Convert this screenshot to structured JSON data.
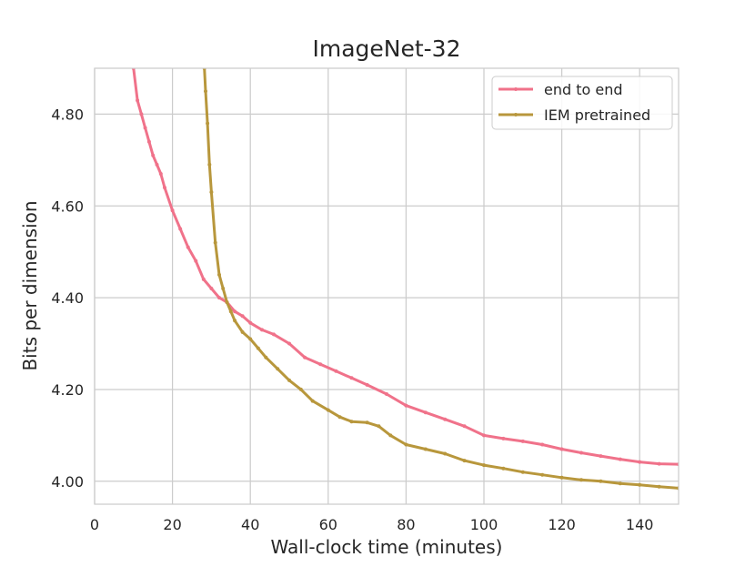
{
  "chart_data": {
    "type": "line",
    "title": "ImageNet-32",
    "xlabel": "Wall-clock time (minutes)",
    "ylabel": "Bits per dimension",
    "xlim": [
      0,
      150
    ],
    "ylim": [
      3.95,
      4.9
    ],
    "xticks": [
      0,
      20,
      40,
      60,
      80,
      100,
      120,
      140
    ],
    "xtick_labels": [
      "0",
      "20",
      "40",
      "60",
      "80",
      "100",
      "120",
      "140"
    ],
    "yticks": [
      4.0,
      4.2,
      4.4,
      4.6,
      4.8
    ],
    "ytick_labels": [
      "4.00",
      "4.20",
      "4.40",
      "4.60",
      "4.80"
    ],
    "grid": true,
    "legend_position": "top-right",
    "series": [
      {
        "name": "end to end",
        "color": "#f0728a",
        "x": [
          10,
          11,
          12,
          13,
          14,
          15,
          16,
          17,
          18,
          20,
          22,
          24,
          26,
          28,
          30,
          32,
          34,
          36,
          38,
          40,
          43,
          46,
          50,
          54,
          58,
          62,
          66,
          70,
          75,
          80,
          85,
          90,
          95,
          100,
          105,
          110,
          115,
          120,
          125,
          130,
          135,
          140,
          145,
          150
        ],
        "y": [
          4.9,
          4.83,
          4.8,
          4.77,
          4.74,
          4.71,
          4.69,
          4.67,
          4.64,
          4.59,
          4.55,
          4.51,
          4.48,
          4.44,
          4.42,
          4.4,
          4.39,
          4.37,
          4.36,
          4.345,
          4.33,
          4.32,
          4.3,
          4.27,
          4.255,
          4.24,
          4.225,
          4.21,
          4.19,
          4.165,
          4.15,
          4.135,
          4.12,
          4.1,
          4.093,
          4.087,
          4.08,
          4.07,
          4.062,
          4.055,
          4.048,
          4.042,
          4.038,
          4.037
        ]
      },
      {
        "name": "IEM pretrained",
        "color": "#b8973c",
        "x": [
          28.2,
          28.5,
          29,
          29.5,
          30,
          31,
          32,
          33,
          34,
          35,
          36,
          38,
          40,
          42,
          44,
          47,
          50,
          53,
          56,
          60,
          63,
          66,
          70,
          73,
          76,
          80,
          85,
          90,
          95,
          100,
          105,
          110,
          115,
          120,
          125,
          130,
          135,
          140,
          145,
          150
        ],
        "y": [
          4.9,
          4.85,
          4.78,
          4.69,
          4.63,
          4.52,
          4.45,
          4.42,
          4.39,
          4.37,
          4.35,
          4.325,
          4.31,
          4.29,
          4.27,
          4.245,
          4.22,
          4.2,
          4.175,
          4.155,
          4.14,
          4.13,
          4.128,
          4.12,
          4.1,
          4.08,
          4.07,
          4.06,
          4.045,
          4.035,
          4.028,
          4.02,
          4.014,
          4.008,
          4.003,
          4.0,
          3.995,
          3.992,
          3.988,
          3.985
        ]
      }
    ]
  }
}
